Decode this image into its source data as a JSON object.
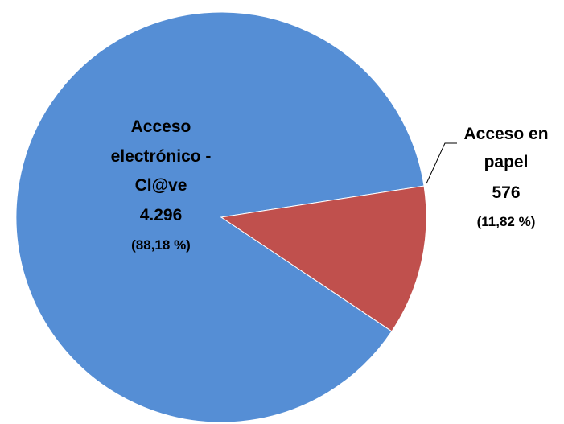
{
  "chart_data": {
    "type": "pie",
    "title": "",
    "slices": [
      {
        "label_lines": [
          "Acceso",
          "electrónico -",
          "Cl@ve"
        ],
        "value": 4296,
        "value_text": "4.296",
        "percent": 88.18,
        "percent_text": "(88,18 %)",
        "color": "#558ed5"
      },
      {
        "label_lines": [
          "Acceso en",
          "papel"
        ],
        "value": 576,
        "value_text": "576",
        "percent": 11.82,
        "percent_text": "(11,82 %)",
        "color": "#c0504d"
      }
    ],
    "legend": "none"
  }
}
